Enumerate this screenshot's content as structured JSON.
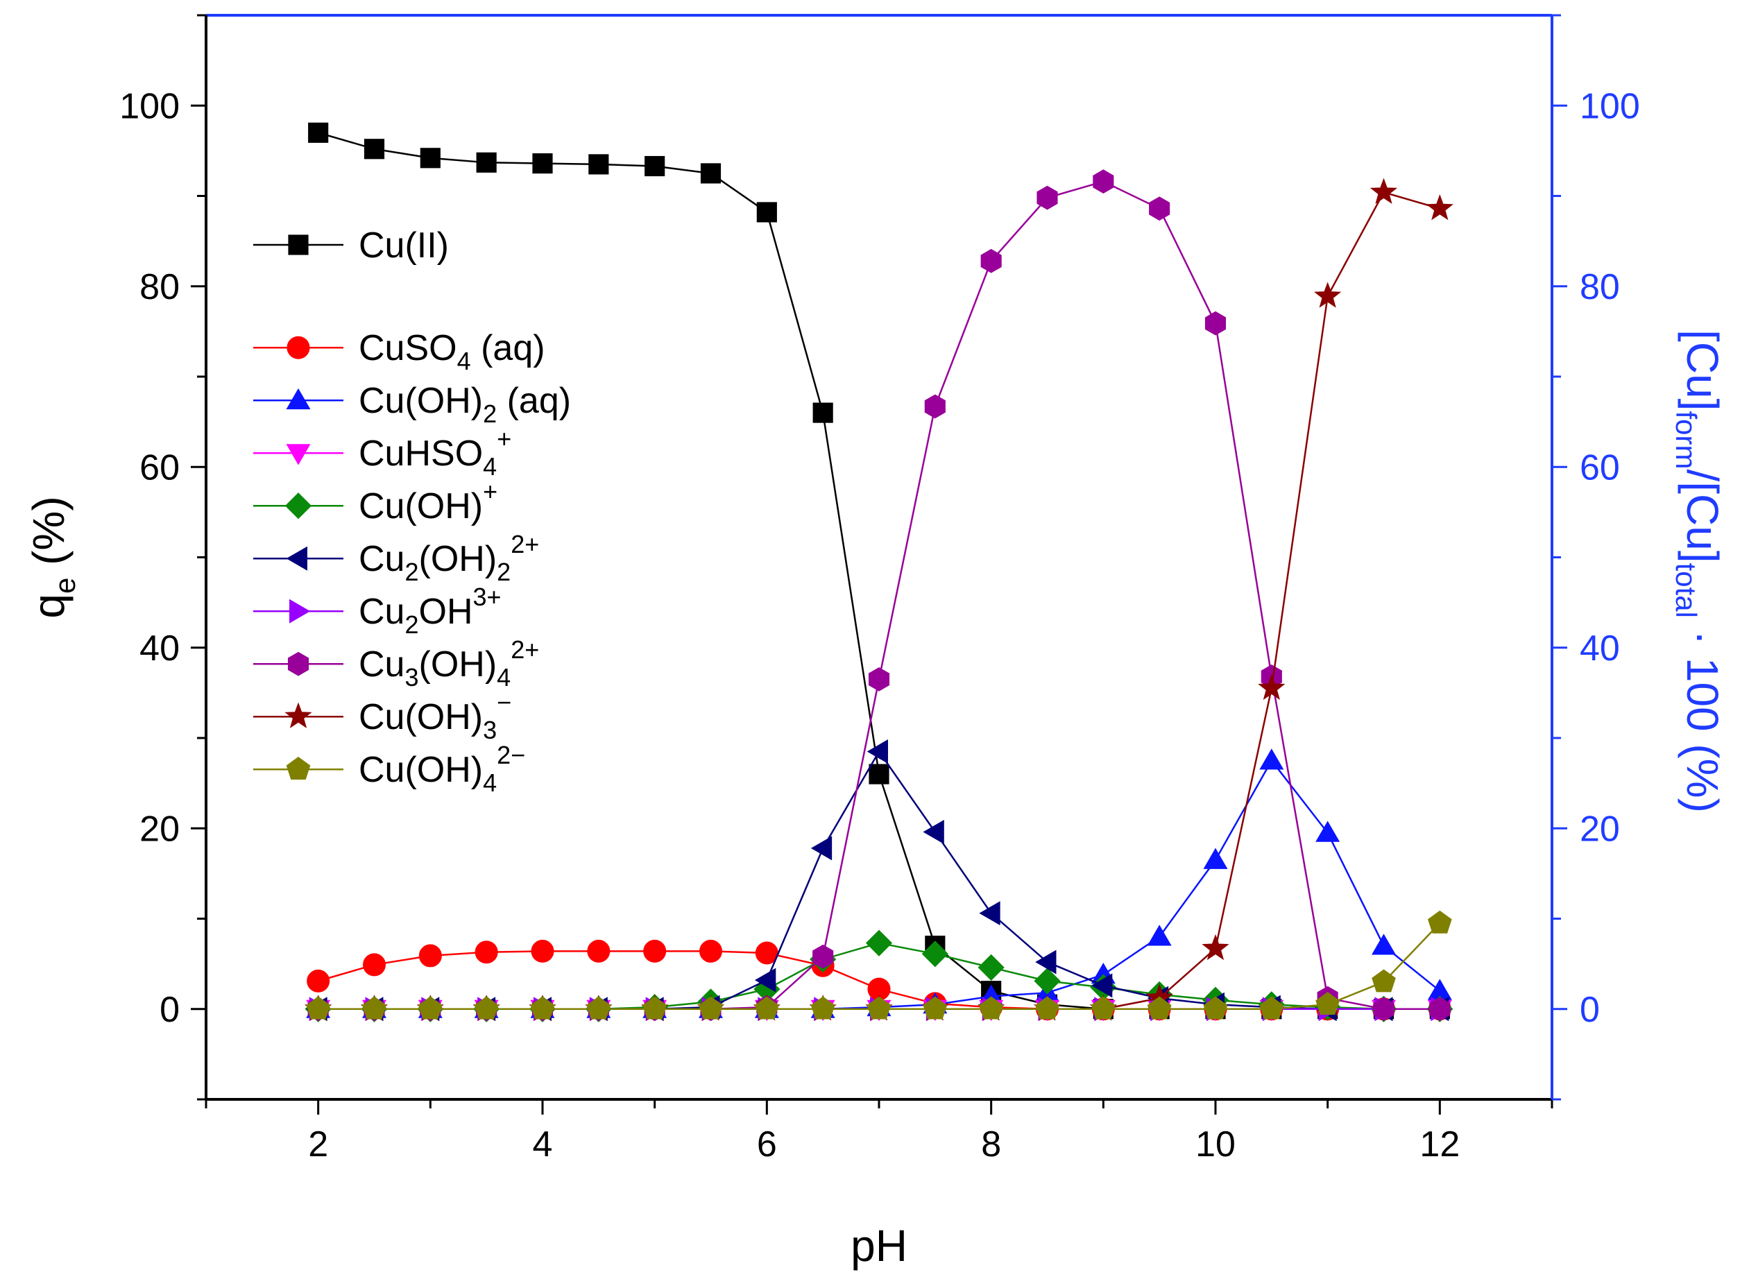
{
  "chart_data": {
    "type": "line",
    "title": "",
    "xlabel": "pH",
    "ylabel_left": {
      "main": "q",
      "sub": "e",
      "tail": " (%)"
    },
    "ylabel_right": {
      "parts": [
        {
          "t": "[Cu]",
          "s": "n"
        },
        {
          "t": "form",
          "s": "sub"
        },
        {
          "t": "/[Cu]",
          "s": "n"
        },
        {
          "t": "total",
          "s": "sub"
        },
        {
          "t": " · 100 (%)",
          "s": "n"
        }
      ]
    },
    "xlim": [
      1,
      13
    ],
    "ylim_left": [
      -10,
      110
    ],
    "ylim_right": [
      -10,
      110
    ],
    "xticks": [
      2,
      4,
      6,
      8,
      10,
      12
    ],
    "yticks_left": [
      0,
      20,
      40,
      60,
      80,
      100
    ],
    "yticks_right": [
      0,
      20,
      40,
      60,
      80,
      100
    ],
    "x": [
      2,
      2.5,
      3,
      3.5,
      4,
      4.5,
      5,
      5.5,
      6,
      6.5,
      7,
      7.5,
      8,
      8.5,
      9,
      9.5,
      10,
      10.5,
      11,
      11.5,
      12
    ],
    "colors": {
      "left_axis": "#000000",
      "right_axis": "#1f3cff"
    },
    "legend_position": "left",
    "series": [
      {
        "name": "Cu(II)",
        "label_parts": [
          {
            "t": "Cu(II)",
            "s": "n"
          }
        ],
        "color": "#000000",
        "marker": "square",
        "axis": "left",
        "values": [
          97,
          95.2,
          94.2,
          93.7,
          93.6,
          93.5,
          93.3,
          92.5,
          88.2,
          66,
          26,
          7,
          2,
          0.5,
          0,
          0,
          0,
          0,
          0,
          0,
          0
        ]
      },
      {
        "name": "CuSO4 (aq)",
        "label_parts": [
          {
            "t": "CuSO",
            "s": "n"
          },
          {
            "t": "4",
            "s": "sub"
          },
          {
            "t": " (aq)",
            "s": "n"
          }
        ],
        "color": "#ff0000",
        "marker": "circle",
        "axis": "right",
        "values": [
          3.1,
          4.9,
          5.9,
          6.3,
          6.4,
          6.4,
          6.4,
          6.4,
          6.2,
          4.8,
          2.2,
          0.6,
          0.2,
          0,
          0,
          0,
          0,
          0,
          0,
          0,
          0
        ]
      },
      {
        "name": "Cu(OH)2 (aq)",
        "label_parts": [
          {
            "t": "Cu(OH)",
            "s": "n"
          },
          {
            "t": "2",
            "s": "sub"
          },
          {
            "t": " (aq)",
            "s": "n"
          }
        ],
        "color": "#0a14ff",
        "marker": "triangle-up",
        "axis": "right",
        "values": [
          0,
          0,
          0,
          0,
          0,
          0,
          0,
          0,
          0,
          0,
          0.2,
          0.5,
          1.4,
          1.8,
          3.8,
          8,
          16.5,
          27.5,
          19.5,
          7,
          2
        ]
      },
      {
        "name": "CuHSO4+",
        "label_parts": [
          {
            "t": "CuHSO",
            "s": "n"
          },
          {
            "t": "4",
            "s": "sub"
          },
          {
            "t": "+",
            "s": "sup"
          }
        ],
        "color": "#ff00ff",
        "marker": "triangle-down",
        "axis": "right",
        "values": [
          0,
          0,
          0,
          0,
          0,
          0,
          0,
          0,
          0,
          0,
          0,
          0,
          0,
          0,
          0,
          0,
          0,
          0,
          0,
          0,
          0
        ]
      },
      {
        "name": "Cu(OH)+",
        "label_parts": [
          {
            "t": "Cu(OH)",
            "s": "n"
          },
          {
            "t": "+",
            "s": "sup"
          }
        ],
        "color": "#0a8a0a",
        "marker": "diamond",
        "axis": "right",
        "values": [
          0,
          0,
          0,
          0,
          0,
          0,
          0.2,
          0.8,
          2.2,
          5.5,
          7.3,
          6.1,
          4.6,
          3.1,
          2.4,
          1.6,
          1,
          0.5,
          0.2,
          0,
          0
        ]
      },
      {
        "name": "Cu2(OH)22+",
        "label_parts": [
          {
            "t": "Cu",
            "s": "n"
          },
          {
            "t": "2",
            "s": "sub"
          },
          {
            "t": "(OH)",
            "s": "n"
          },
          {
            "t": "2",
            "s": "sub"
          },
          {
            "t": "2+",
            "s": "sup"
          }
        ],
        "color": "#00007a",
        "marker": "triangle-left",
        "axis": "right",
        "values": [
          0,
          0,
          0,
          0,
          0,
          0,
          0,
          0.2,
          3.2,
          17.8,
          28.5,
          19.6,
          10.6,
          5.2,
          2.6,
          1.2,
          0.5,
          0.2,
          0,
          0,
          0
        ]
      },
      {
        "name": "Cu2OH3+",
        "label_parts": [
          {
            "t": "Cu",
            "s": "n"
          },
          {
            "t": "2",
            "s": "sub"
          },
          {
            "t": "OH",
            "s": "n"
          },
          {
            "t": "3+",
            "s": "sup"
          }
        ],
        "color": "#9900ff",
        "marker": "triangle-right",
        "axis": "right",
        "values": [
          0,
          0,
          0,
          0,
          0,
          0,
          0,
          0,
          0,
          0,
          0,
          0,
          0,
          0,
          0,
          0,
          0,
          0,
          0,
          0,
          0
        ]
      },
      {
        "name": "Cu3(OH)42+",
        "label_parts": [
          {
            "t": "Cu",
            "s": "n"
          },
          {
            "t": "3",
            "s": "sub"
          },
          {
            "t": "(OH)",
            "s": "n"
          },
          {
            "t": "4",
            "s": "sub"
          },
          {
            "t": "2+",
            "s": "sup"
          }
        ],
        "color": "#990099",
        "marker": "hexagon",
        "axis": "right",
        "values": [
          0,
          0,
          0,
          0,
          0,
          0,
          0,
          0,
          0.2,
          5.8,
          36.5,
          66.7,
          82.8,
          89.8,
          91.6,
          88.6,
          75.9,
          36.8,
          1.2,
          0,
          0
        ]
      },
      {
        "name": "Cu(OH)3-",
        "label_parts": [
          {
            "t": "Cu(OH)",
            "s": "n"
          },
          {
            "t": "3",
            "s": "sub"
          },
          {
            "t": "−",
            "s": "sup"
          }
        ],
        "color": "#8b0000",
        "marker": "star",
        "axis": "right",
        "values": [
          0,
          0,
          0,
          0,
          0,
          0,
          0,
          0,
          0,
          0,
          0,
          0,
          0,
          0,
          0,
          1.2,
          6.7,
          35.5,
          78.9,
          90.4,
          88.6
        ]
      },
      {
        "name": "Cu(OH)42-",
        "label_parts": [
          {
            "t": "Cu(OH)",
            "s": "n"
          },
          {
            "t": "4",
            "s": "sub"
          },
          {
            "t": "2−",
            "s": "sup"
          }
        ],
        "color": "#808000",
        "marker": "pentagon",
        "axis": "right",
        "values": [
          0,
          0,
          0,
          0,
          0,
          0,
          0,
          0,
          0,
          0,
          0,
          0,
          0,
          0,
          0,
          0,
          0,
          0,
          0.5,
          3,
          9.5
        ]
      }
    ]
  }
}
